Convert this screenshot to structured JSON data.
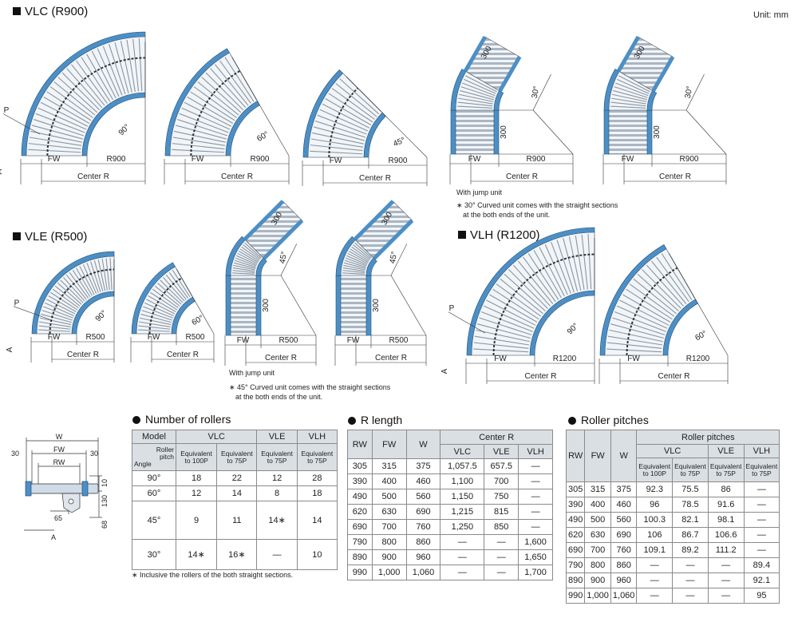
{
  "unit": "Unit: mm",
  "sections": {
    "vlc": "VLC (R900)",
    "vle": "VLE (R500)",
    "vlh": "VLH (R1200)"
  },
  "notes": {
    "jump": "With jump unit",
    "vlc_note": [
      "∗ 30° Curved unit comes with the straight sections",
      "at the both ends of the unit."
    ],
    "vle_note": [
      "∗ 45° Curved unit comes with the straight sections",
      "at the both ends of the unit."
    ],
    "rollers_note": "∗ Inclusive the rollers of the both straight sections."
  },
  "diagram_labels": {
    "P": "P",
    "A": "A",
    "FW": "FW",
    "center": "Center R",
    "r900": "R900",
    "r500": "R500",
    "r1200": "R1200",
    "a90": "90°",
    "a60": "60°",
    "a45": "45°",
    "a30": "30°",
    "s300": "300"
  },
  "cross": {
    "W": "W",
    "FW": "FW",
    "RW": "RW",
    "d30": "30",
    "d10": "10",
    "d130": "130",
    "d68": "68",
    "d65": "65",
    "A": "A"
  },
  "tables": {
    "rollers": {
      "title": "Number of rollers",
      "h_model": "Model",
      "h_vlc": "VLC",
      "h_vle": "VLE",
      "h_vlh": "VLH",
      "h_roller": "Roller",
      "h_pitch": "pitch",
      "h_angle": "Angle",
      "eq100": "Equivalent to 100P",
      "eq75": "Equivalent to 75P",
      "rows": [
        [
          "90°",
          "18",
          "22",
          "12",
          "28"
        ],
        [
          "60°",
          "12",
          "14",
          "8",
          "18"
        ],
        [
          "45°",
          "9",
          "11",
          "14∗",
          "14"
        ],
        [
          "30°",
          "14∗",
          "16∗",
          "—",
          "10"
        ]
      ]
    },
    "rlength": {
      "title": "R length",
      "h": [
        "RW",
        "FW",
        "W",
        "Center R",
        "VLC",
        "VLE",
        "VLH"
      ],
      "rows": [
        [
          "305",
          "315",
          "375",
          "1,057.5",
          "657.5",
          "—"
        ],
        [
          "390",
          "400",
          "460",
          "1,100",
          "700",
          "—"
        ],
        [
          "490",
          "500",
          "560",
          "1,150",
          "750",
          "—"
        ],
        [
          "620",
          "630",
          "690",
          "1,215",
          "815",
          "—"
        ],
        [
          "690",
          "700",
          "760",
          "1,250",
          "850",
          "—"
        ],
        [
          "790",
          "800",
          "860",
          "—",
          "—",
          "1,600"
        ],
        [
          "890",
          "900",
          "960",
          "—",
          "—",
          "1,650"
        ],
        [
          "990",
          "1,000",
          "1,060",
          "—",
          "—",
          "1,700"
        ]
      ]
    },
    "pitches": {
      "title": "Roller pitches",
      "h": [
        "RW",
        "FW",
        "W",
        "Roller pitches",
        "VLC",
        "VLE",
        "VLH"
      ],
      "sub": [
        "Equivalent to 100P",
        "Equivalent to 75P",
        "Equivalent to 75P",
        "Equivalent to 75P"
      ],
      "rows": [
        [
          "305",
          "315",
          "375",
          "92.3",
          "75.5",
          "86",
          "—"
        ],
        [
          "390",
          "400",
          "460",
          "96",
          "78.5",
          "91.6",
          "—"
        ],
        [
          "490",
          "500",
          "560",
          "100.3",
          "82.1",
          "98.1",
          "—"
        ],
        [
          "620",
          "630",
          "690",
          "106",
          "86.7",
          "106.6",
          "—"
        ],
        [
          "690",
          "700",
          "760",
          "109.1",
          "89.2",
          "111.2",
          "—"
        ],
        [
          "790",
          "800",
          "860",
          "—",
          "—",
          "—",
          "89.4"
        ],
        [
          "890",
          "900",
          "960",
          "—",
          "—",
          "—",
          "92.1"
        ],
        [
          "990",
          "1,000",
          "1,060",
          "—",
          "—",
          "—",
          "95"
        ]
      ]
    }
  }
}
